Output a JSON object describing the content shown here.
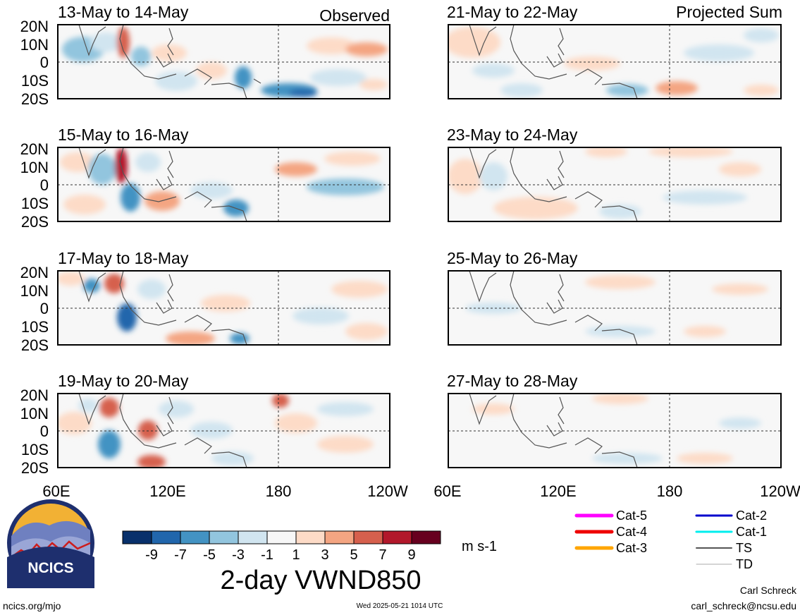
{
  "header": {
    "left_label": "Observed",
    "right_label": "Projected Sum"
  },
  "chart_data": {
    "type": "heatmap",
    "title": "2-day VWND850",
    "units": "m s-1",
    "x_ticks": [
      "60E",
      "120E",
      "180",
      "120W"
    ],
    "y_ticks": [
      "20N",
      "10N",
      "0",
      "10S",
      "20S"
    ],
    "xlim": [
      "60E",
      "120W"
    ],
    "ylim": [
      "20S",
      "20N"
    ],
    "grid": "dashed lines at 0 and 180",
    "colorbar": {
      "ticks": [
        "-9",
        "-7",
        "-5",
        "-3",
        "-1",
        "1",
        "3",
        "5",
        "7",
        "9"
      ],
      "colors": [
        "#08306b",
        "#2166ac",
        "#4393c3",
        "#92c5de",
        "#d1e5f0",
        "#f7f7f7",
        "#fddbc7",
        "#f4a582",
        "#d6604d",
        "#b2182b",
        "#67001f"
      ]
    },
    "panels": [
      {
        "title": "13-May to 14-May",
        "group": "Observed"
      },
      {
        "title": "21-May to 22-May",
        "group": "Projected Sum"
      },
      {
        "title": "15-May to 16-May",
        "group": "Observed"
      },
      {
        "title": "23-May to 24-May",
        "group": "Projected Sum"
      },
      {
        "title": "17-May to 18-May",
        "group": "Observed"
      },
      {
        "title": "25-May to 26-May",
        "group": "Projected Sum"
      },
      {
        "title": "19-May to 20-May",
        "group": "Observed"
      },
      {
        "title": "27-May to 28-May",
        "group": "Projected Sum"
      }
    ]
  },
  "legend": {
    "items": [
      {
        "label": "Cat-5",
        "color": "#ff00ff"
      },
      {
        "label": "Cat-4",
        "color": "#ee0000"
      },
      {
        "label": "Cat-3",
        "color": "#ffa500"
      },
      {
        "label": "Cat-2",
        "color": "#0000cc"
      },
      {
        "label": "Cat-1",
        "color": "#00eeee"
      },
      {
        "label": "TS",
        "color": "#555555"
      },
      {
        "label": "TD",
        "color": "#aaaaaa"
      }
    ]
  },
  "logo": {
    "text": "NCICS"
  },
  "footer": {
    "url": "ncics.org/mjo",
    "timestamp": "Wed 2025-05-21 1014 UTC",
    "author": "Carl Schreck",
    "email": "carl_schreck@ncsu.edu"
  }
}
